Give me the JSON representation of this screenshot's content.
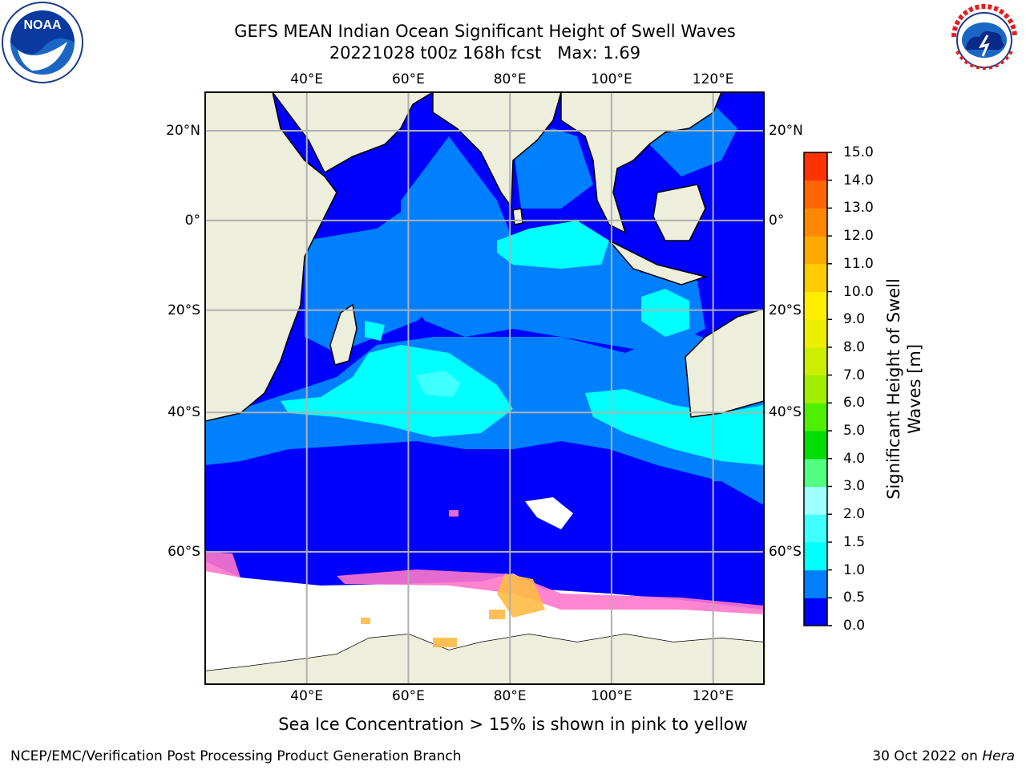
{
  "title_line1": "GEFS MEAN Indian Ocean Significant Height of Swell Waves",
  "title_line2": "20221028 t00z 168h fcst   Max: 1.69",
  "map": {
    "lon_ticks": [
      "40°E",
      "60°E",
      "80°E",
      "100°E",
      "120°E"
    ],
    "lat_ticks": [
      "20°N",
      "0°",
      "20°S",
      "40°S",
      "60°S"
    ],
    "lon_values": [
      40,
      60,
      80,
      100,
      120
    ],
    "lat_values": [
      20,
      0,
      -20,
      -40,
      -60
    ],
    "lon_range": [
      20,
      130
    ],
    "lat_range": [
      -72,
      28
    ],
    "grid": true,
    "colors": {
      "land": "#eeeedc",
      "sea_ice": "#ffffff",
      "gridline": "#b0b0b0"
    }
  },
  "colorbar": {
    "title_line1": "Significant Height of Swell",
    "title_line2": "Waves [m]",
    "labels": [
      "0.0",
      "0.5",
      "1.0",
      "1.5",
      "2.0",
      "3.0",
      "4.0",
      "5.0",
      "6.0",
      "7.0",
      "8.0",
      "9.0",
      "10.0",
      "11.0",
      "12.0",
      "13.0",
      "14.0",
      "15.0"
    ],
    "colors": [
      "#0000ff",
      "#0080ff",
      "#00ffff",
      "#40ffff",
      "#a0ffff",
      "#50ff80",
      "#00dd00",
      "#50ee00",
      "#a0ee00",
      "#ccee00",
      "#eeee00",
      "#ffee00",
      "#ffcc00",
      "#ffaa00",
      "#ff8800",
      "#ff6600",
      "#ff3300",
      "#ff0000"
    ]
  },
  "caption": "Sea Ice Concentration > 15% is shown in pink to yellow",
  "footer_left": "NCEP/EMC/Verification Post Processing Product Generation Branch",
  "footer_right_prefix": "30 Oct 2022 on ",
  "footer_right_machine": "Hera",
  "logos": {
    "left": "noaa-logo",
    "right": "national-weather-service-logo"
  }
}
